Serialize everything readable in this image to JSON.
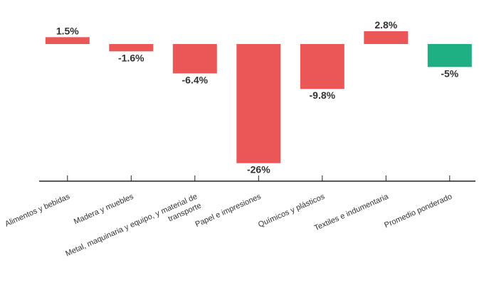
{
  "chart_data": {
    "type": "bar",
    "categories": [
      [
        "Alimentos y bebidas"
      ],
      [
        "Madera y muebles"
      ],
      [
        "Metal, maquinaria y equipo, y material de",
        "transporte"
      ],
      [
        "Papel e impresiones"
      ],
      [
        "Químicos y plásticos"
      ],
      [
        "Textiles e indumentaria"
      ],
      [
        "Promedio ponderado"
      ]
    ],
    "values": [
      1.5,
      -1.6,
      -6.4,
      -26,
      -9.8,
      2.8,
      -5
    ],
    "value_labels": [
      "1.5%",
      "-1.6%",
      "-6.4%",
      "-26%",
      "-9.8%",
      "2.8%",
      "-5%"
    ],
    "ylim": [
      -30,
      3
    ],
    "grid": false,
    "colors": {
      "bar": "#eb5757",
      "highlight": "#1eb082",
      "axis": "#222222",
      "text": "#333333"
    },
    "highlight_index": 6
  }
}
